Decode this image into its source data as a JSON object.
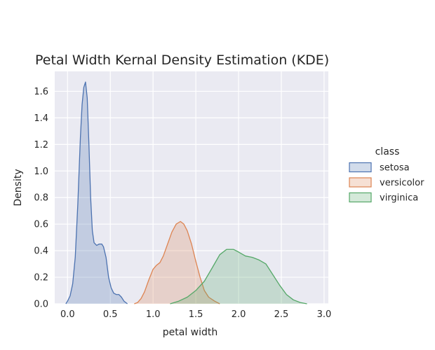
{
  "chart_data": {
    "type": "area",
    "title": "Petal Width Kernal Density Estimation (KDE)",
    "xlabel": "petal width",
    "ylabel": "Density",
    "xlim": [
      -0.15,
      3.05
    ],
    "ylim": [
      0,
      1.75
    ],
    "xticks": [
      0.0,
      0.5,
      1.0,
      1.5,
      2.0,
      2.5,
      3.0
    ],
    "xtick_labels": [
      "0.0",
      "0.5",
      "1.0",
      "1.5",
      "2.0",
      "2.5",
      "3.0"
    ],
    "yticks": [
      0.0,
      0.2,
      0.4,
      0.6,
      0.8,
      1.0,
      1.2,
      1.4,
      1.6
    ],
    "ytick_labels": [
      "0.0",
      "0.2",
      "0.4",
      "0.6",
      "0.8",
      "1.0",
      "1.2",
      "1.4",
      "1.6"
    ],
    "grid": true,
    "background": "#eaeaf2",
    "legend_title": "class",
    "legend_placement": "right",
    "series": [
      {
        "name": "setosa",
        "color": "#4c72b0",
        "points": [
          [
            -0.02,
            0.0
          ],
          [
            0.0,
            0.02
          ],
          [
            0.03,
            0.06
          ],
          [
            0.06,
            0.15
          ],
          [
            0.09,
            0.35
          ],
          [
            0.12,
            0.75
          ],
          [
            0.15,
            1.25
          ],
          [
            0.17,
            1.5
          ],
          [
            0.19,
            1.63
          ],
          [
            0.21,
            1.67
          ],
          [
            0.23,
            1.55
          ],
          [
            0.25,
            1.2
          ],
          [
            0.27,
            0.8
          ],
          [
            0.29,
            0.55
          ],
          [
            0.31,
            0.46
          ],
          [
            0.34,
            0.44
          ],
          [
            0.37,
            0.45
          ],
          [
            0.4,
            0.45
          ],
          [
            0.42,
            0.43
          ],
          [
            0.45,
            0.35
          ],
          [
            0.48,
            0.2
          ],
          [
            0.51,
            0.12
          ],
          [
            0.54,
            0.08
          ],
          [
            0.57,
            0.07
          ],
          [
            0.6,
            0.07
          ],
          [
            0.63,
            0.05
          ],
          [
            0.66,
            0.02
          ],
          [
            0.7,
            0.0
          ]
        ]
      },
      {
        "name": "versicolor",
        "color": "#dd8452",
        "points": [
          [
            0.78,
            0.0
          ],
          [
            0.82,
            0.01
          ],
          [
            0.86,
            0.04
          ],
          [
            0.9,
            0.09
          ],
          [
            0.95,
            0.18
          ],
          [
            1.0,
            0.26
          ],
          [
            1.04,
            0.29
          ],
          [
            1.08,
            0.31
          ],
          [
            1.12,
            0.36
          ],
          [
            1.17,
            0.45
          ],
          [
            1.22,
            0.54
          ],
          [
            1.27,
            0.6
          ],
          [
            1.32,
            0.62
          ],
          [
            1.36,
            0.6
          ],
          [
            1.4,
            0.55
          ],
          [
            1.45,
            0.45
          ],
          [
            1.5,
            0.32
          ],
          [
            1.55,
            0.2
          ],
          [
            1.6,
            0.1
          ],
          [
            1.65,
            0.05
          ],
          [
            1.72,
            0.02
          ],
          [
            1.78,
            0.0
          ]
        ]
      },
      {
        "name": "virginica",
        "color": "#55a868",
        "points": [
          [
            1.2,
            0.0
          ],
          [
            1.3,
            0.02
          ],
          [
            1.4,
            0.05
          ],
          [
            1.5,
            0.1
          ],
          [
            1.6,
            0.17
          ],
          [
            1.7,
            0.28
          ],
          [
            1.78,
            0.37
          ],
          [
            1.86,
            0.41
          ],
          [
            1.94,
            0.41
          ],
          [
            2.0,
            0.39
          ],
          [
            2.08,
            0.36
          ],
          [
            2.16,
            0.35
          ],
          [
            2.24,
            0.33
          ],
          [
            2.32,
            0.3
          ],
          [
            2.4,
            0.22
          ],
          [
            2.48,
            0.14
          ],
          [
            2.56,
            0.07
          ],
          [
            2.64,
            0.03
          ],
          [
            2.72,
            0.01
          ],
          [
            2.8,
            0.0
          ]
        ]
      }
    ]
  }
}
